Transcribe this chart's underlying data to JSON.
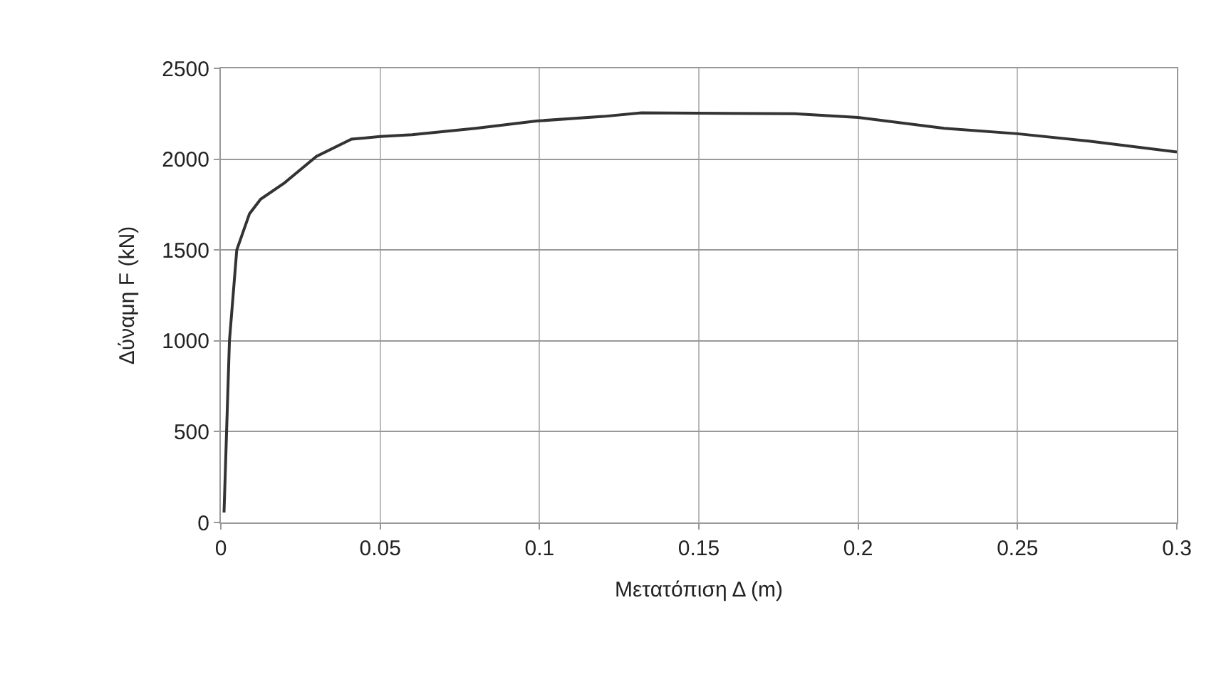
{
  "chart_data": {
    "type": "line",
    "xlabel": "Μετατόπιση Δ (m)",
    "ylabel": "Δύναμη F (kN)",
    "xlim": [
      0,
      0.3
    ],
    "xticks": [
      0,
      0.05,
      0.1,
      0.15,
      0.2,
      0.25,
      0.3
    ],
    "ylim": [
      0,
      2500
    ],
    "yticks": [
      0,
      500,
      1000,
      1500,
      2000,
      2500
    ],
    "grid": true,
    "legend": false,
    "marker": "none",
    "line_style": "solid",
    "series": [
      {
        "color": "#333333",
        "x": [
          0.001,
          0.0018,
          0.0027,
          0.005,
          0.009,
          0.0125,
          0.02,
          0.03,
          0.041,
          0.05,
          0.06,
          0.08,
          0.099,
          0.12,
          0.132,
          0.18,
          0.2,
          0.227,
          0.25,
          0.272,
          0.3
        ],
        "values": [
          55,
          500,
          1000,
          1500,
          1700,
          1780,
          1870,
          2015,
          2110,
          2125,
          2135,
          2170,
          2210,
          2235,
          2255,
          2250,
          2230,
          2170,
          2140,
          2100,
          2040
        ]
      }
    ]
  }
}
